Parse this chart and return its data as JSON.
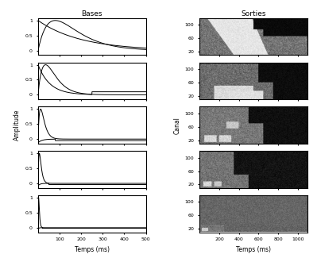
{
  "title_left": "Bases",
  "title_right": "Sorties",
  "xlabel_left": "Temps (ms)",
  "xlabel_right": "Temps (ms)",
  "ylabel_left": "Amplitude",
  "ylabel_right": "Canal",
  "left_yticks": [
    0,
    0.5,
    1
  ],
  "right_yticks": [
    20,
    60,
    100
  ],
  "left_xticks": [
    100,
    200,
    300,
    400,
    500
  ],
  "right_xticks": [
    200,
    400,
    600,
    800,
    1000
  ],
  "n_rows": 5,
  "figsize": [
    3.99,
    3.25
  ],
  "dpi": 100
}
